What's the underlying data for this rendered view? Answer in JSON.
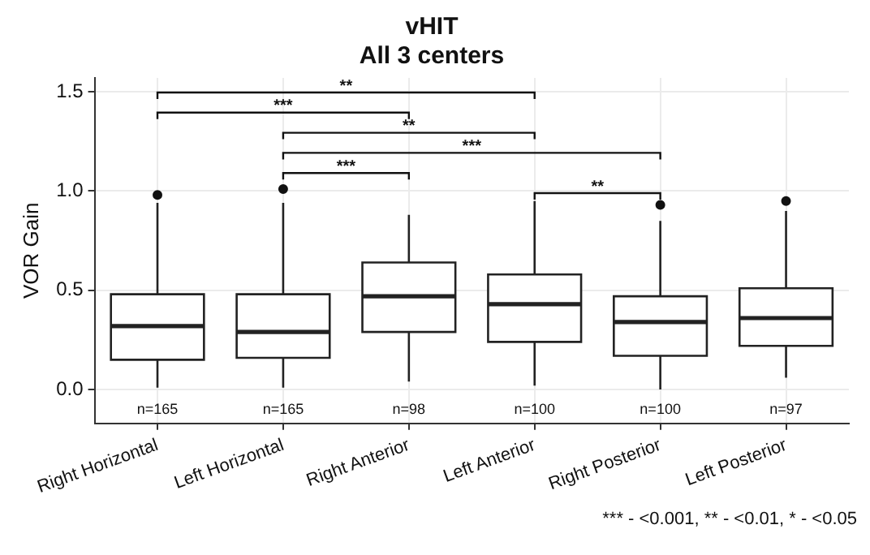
{
  "chart_data": {
    "type": "box",
    "title": "vHIT",
    "subtitle": "All 3 centers",
    "ylabel": "VOR Gain",
    "categories": [
      "Right Horizontal",
      "Left Horizontal",
      "Right Anterior",
      "Left Anterior",
      "Right Posterior",
      "Left Posterior"
    ],
    "boxes": [
      {
        "low": 0.01,
        "q1": 0.15,
        "median": 0.32,
        "q3": 0.48,
        "high": 0.94,
        "outliers": [
          0.98
        ]
      },
      {
        "low": 0.01,
        "q1": 0.16,
        "median": 0.29,
        "q3": 0.48,
        "high": 0.94,
        "outliers": [
          1.01
        ]
      },
      {
        "low": 0.04,
        "q1": 0.29,
        "median": 0.47,
        "q3": 0.64,
        "high": 0.88
      },
      {
        "low": 0.02,
        "q1": 0.24,
        "median": 0.43,
        "q3": 0.58,
        "high": 0.95
      },
      {
        "low": 0.0,
        "q1": 0.17,
        "median": 0.34,
        "q3": 0.47,
        "high": 0.85,
        "outliers": [
          0.93
        ]
      },
      {
        "low": 0.06,
        "q1": 0.22,
        "median": 0.36,
        "q3": 0.51,
        "high": 0.9,
        "outliers": [
          0.95
        ]
      }
    ],
    "ylim": [
      -0.17,
      1.57
    ],
    "yticks": [
      {
        "value": 0,
        "label": "0.0"
      },
      0.5,
      {
        "value": 1,
        "label": "1.0"
      },
      1.5
    ],
    "grid": true,
    "annotations": [
      "**",
      "***",
      "**",
      "***",
      "***",
      "**",
      "n=165",
      "n=165",
      "n=98",
      "n=100",
      "n=100",
      "n=97",
      "*** - <0.001, ** - <0.01, * - <0.05"
    ]
  }
}
